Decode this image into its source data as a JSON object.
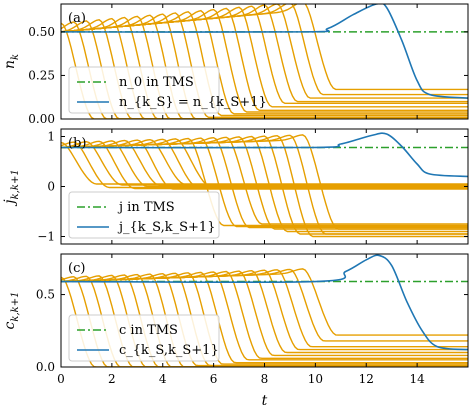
{
  "chart_data": [
    {
      "panel": "(a)",
      "type": "line",
      "ylabel": "n_k",
      "xlabel": "",
      "xlim": [
        0,
        16
      ],
      "ylim": [
        0.0,
        0.66
      ],
      "yticks": [
        "0.00",
        "0.25",
        "0.50"
      ],
      "ytick_values": [
        0.0,
        0.25,
        0.5
      ],
      "legend": [
        "n_0 in TMS",
        "n_{k_S} = n_{k_S+1}"
      ],
      "legend_placement": "lower-left",
      "tms_value": 0.5,
      "profile": {
        "base": 0.5,
        "slope": 0.013,
        "bump": 0.05
      },
      "highlight": {
        "name": "n_{k_S} = n_{k_S+1}",
        "points": [
          [
            0,
            0.5
          ],
          [
            9.5,
            0.5
          ],
          [
            10.5,
            0.52
          ],
          [
            11.5,
            0.6
          ],
          [
            12.4,
            0.66
          ],
          [
            12.8,
            0.64
          ],
          [
            13.4,
            0.45
          ],
          [
            14.0,
            0.22
          ],
          [
            14.5,
            0.14
          ],
          [
            16,
            0.12
          ]
        ]
      },
      "bundle": {
        "count": 20,
        "start_min": 0.0,
        "start_max": 9.5,
        "width": 1.3,
        "final_values": [
          0.0,
          0.0,
          0.0,
          0.0,
          0.0,
          0.0,
          0.0,
          0.0,
          0.0,
          0.01,
          0.02,
          0.03,
          0.04,
          0.05,
          0.07,
          0.09,
          0.1,
          0.12,
          0.14,
          0.17
        ]
      }
    },
    {
      "panel": "(b)",
      "type": "line",
      "ylabel": "j_{k,k+1}",
      "xlabel": "",
      "xlim": [
        0,
        16
      ],
      "ylim": [
        -1.15,
        1.15
      ],
      "yticks": [
        "−1",
        "0",
        "1"
      ],
      "ytick_values": [
        -1,
        0,
        1
      ],
      "legend": [
        "j in TMS",
        "j_{k_S,k_S+1}"
      ],
      "legend_placement": "lower-left",
      "tms_value": 0.78,
      "profile": {
        "base": 0.78,
        "slope": 0.016,
        "bump": 0.1
      },
      "highlight": {
        "name": "j_{k_S,k_S+1}",
        "points": [
          [
            0,
            0.78
          ],
          [
            9.8,
            0.78
          ],
          [
            11,
            0.85
          ],
          [
            12.2,
            1.02
          ],
          [
            12.8,
            1.05
          ],
          [
            13.4,
            0.8
          ],
          [
            14,
            0.45
          ],
          [
            14.5,
            0.25
          ],
          [
            16,
            0.2
          ]
        ]
      },
      "bundle": {
        "count": 20,
        "start_min": 0.0,
        "start_max": 9.5,
        "width": 1.4,
        "final_values": [
          0.05,
          -0.02,
          0.03,
          -0.04,
          0.0,
          0.02,
          -0.05,
          0.04,
          -0.02,
          0.0,
          -0.78,
          -0.8,
          -0.82,
          -0.75,
          -0.85,
          -0.9,
          -0.95,
          -1.0,
          -0.95,
          -0.85
        ]
      }
    },
    {
      "panel": "(c)",
      "type": "line",
      "ylabel": "c_{k,k+1}",
      "xlabel": "t",
      "xlim": [
        0,
        16
      ],
      "ylim": [
        0.0,
        0.78
      ],
      "yticks": [
        "0.0",
        "0.5"
      ],
      "ytick_values": [
        0.0,
        0.5
      ],
      "xticks": [
        "0",
        "2",
        "4",
        "6",
        "8",
        "10",
        "12",
        "14"
      ],
      "xtick_values": [
        0,
        2,
        4,
        6,
        8,
        10,
        12,
        14
      ],
      "legend": [
        "c in TMS",
        "c_{k_S,k_S+1}"
      ],
      "legend_placement": "lower-left",
      "tms_value": 0.59,
      "profile": {
        "base": 0.59,
        "slope": 0.006,
        "bump": 0.03
      },
      "highlight": {
        "name": "c_{k_S,k_S+1}",
        "points": [
          [
            0,
            0.59
          ],
          [
            10.0,
            0.59
          ],
          [
            11.2,
            0.66
          ],
          [
            12.0,
            0.74
          ],
          [
            12.5,
            0.77
          ],
          [
            13.0,
            0.7
          ],
          [
            13.6,
            0.45
          ],
          [
            14.2,
            0.25
          ],
          [
            14.8,
            0.14
          ],
          [
            16,
            0.12
          ]
        ]
      },
      "bundle": {
        "count": 20,
        "start_min": 0.0,
        "start_max": 9.5,
        "width": 1.35,
        "final_values": [
          0.0,
          0.0,
          0.0,
          0.0,
          0.0,
          0.0,
          0.0,
          0.0,
          0.01,
          0.01,
          0.02,
          0.03,
          0.05,
          0.06,
          0.08,
          0.1,
          0.12,
          0.14,
          0.18,
          0.22
        ]
      }
    }
  ],
  "colors": {
    "bundle": "#E69F00",
    "highlight": "#1f77b4",
    "tms": "#2ca02c"
  }
}
